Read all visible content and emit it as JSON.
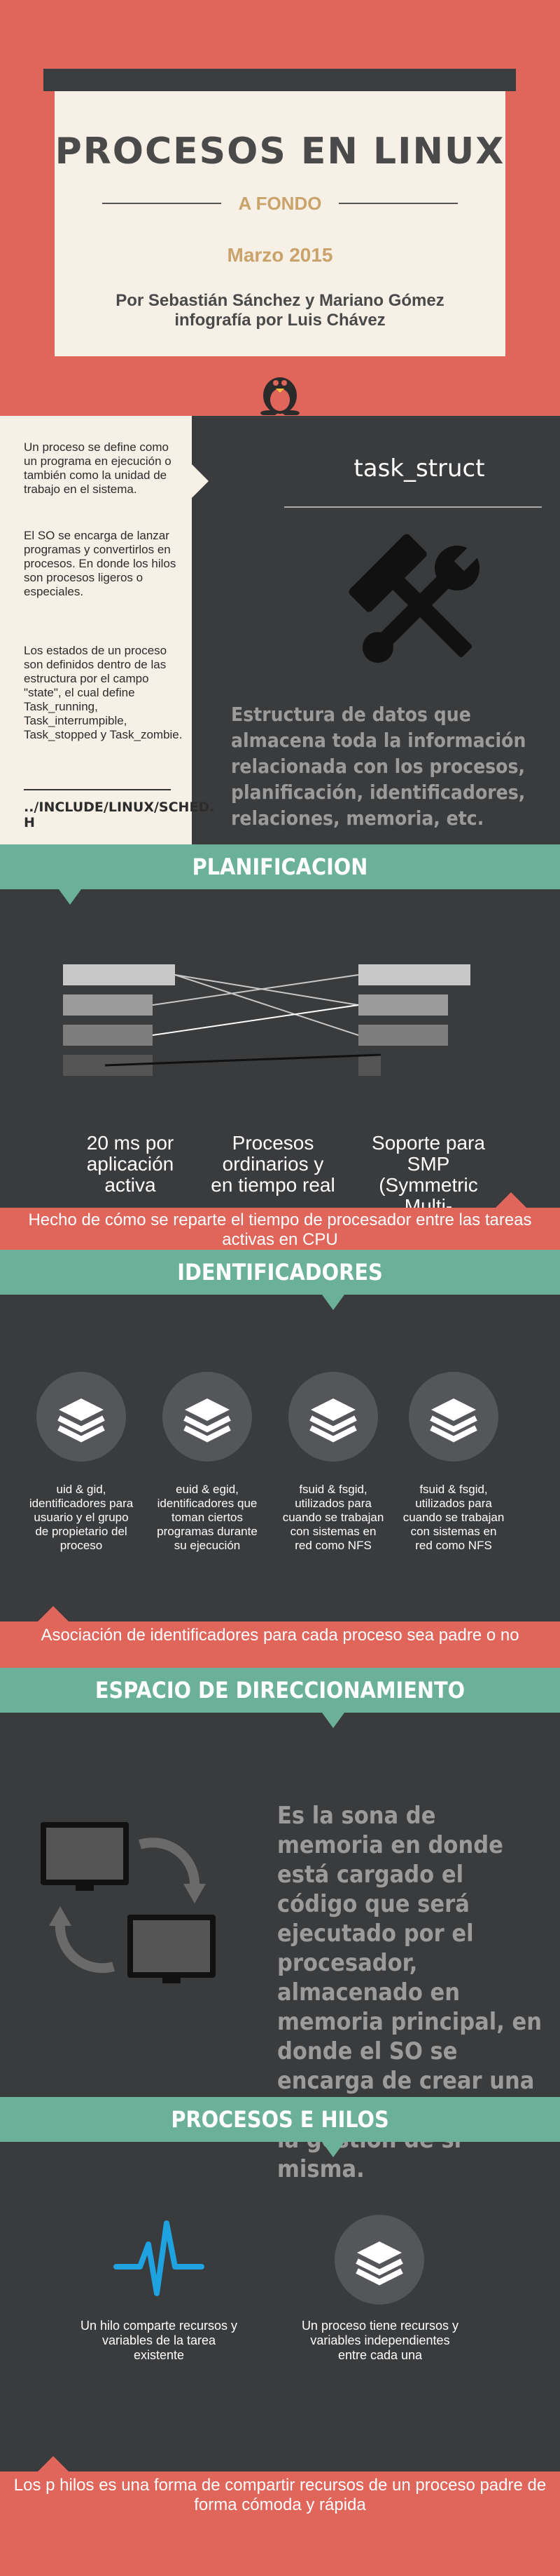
{
  "hero": {
    "title": "PROCESOS EN LINUX",
    "subtitle": "A FONDO",
    "date": "Marzo 2015",
    "authors_line1": "Por Sebastián Sánchez y Mariano Gómez",
    "authors_line2": "infografía por Luis Chávez",
    "icon": "tux-penguin-icon"
  },
  "intro": {
    "p1": "Un proceso se define como un programa en ejecución o también como la unidad de trabajo en el sistema.",
    "p2": "El SO se encarga de lanzar programas y convertirlos en procesos. En donde los hilos son procesos ligeros o especiales.",
    "p3": "Los estados de un proceso son definidos dentro de las estructura por el campo \"state\", el cual define Task_running, Task_interrumpible, Task_stopped y Task_zombie.",
    "path_line1": "../INCLUDE/LINUX/SCHED.",
    "path_line2": "H",
    "struct_title": "task_struct",
    "struct_desc": "Estructura de datos que almacena toda la información relacionada con los procesos, planificación, identificadores, relaciones, memoria, etc.",
    "icon": "tools-icon"
  },
  "planificacion": {
    "title": "PLANIFICACION",
    "labels": [
      "20 ms por aplicación activa",
      "Procesos ordinarios y en tiempo real",
      "Soporte para SMP (Symmetric Multi-Processing)"
    ],
    "footer": "Hecho de cómo se reparte el tiempo de procesador entre las tareas activas en CPU"
  },
  "identificadores": {
    "title": "IDENTIFICADORES",
    "items": [
      "uid & gid, identificadores para usuario y el grupo de propietario del proceso",
      "euid & egid, identificadores que toman ciertos programas durante su ejecución",
      "fsuid & fsgid, utilizados para cuando se trabajan con sistemas en red como NFS",
      "fsuid & fsgid, utilizados para cuando se trabajan con sistemas en red como NFS"
    ],
    "icon": "layers-icon",
    "footer": "Asociación de identificadores para cada proceso sea padre o no"
  },
  "espacio": {
    "title": "ESPACIO DE DIRECCIONAMIENTO",
    "text": "Es la sona de memoria en donde está cargado el código que será ejecutado por el procesador, almacenado en memoria principal, en donde el SO se encarga de crear una memoria virtual para la gestión de sí misma.",
    "icon": "monitors-sync-icon"
  },
  "hilos": {
    "title": "PROCESOS E HILOS",
    "left_text": "Un hilo comparte recursos y variables de la tarea existente",
    "right_text": "Un proceso tiene recursos y variables independientes entre cada una",
    "left_icon": "pulse-icon",
    "right_icon": "layers-icon",
    "footer": "Los p hilos es una forma de compartir recursos de un proceso padre de forma cómoda y rápida"
  },
  "colors": {
    "red": "#e0655a",
    "green": "#6bb199",
    "dark": "#3a3b3d",
    "cream": "#f6f0e6",
    "gold": "#c9a36a",
    "blue": "#1fa3e0"
  }
}
